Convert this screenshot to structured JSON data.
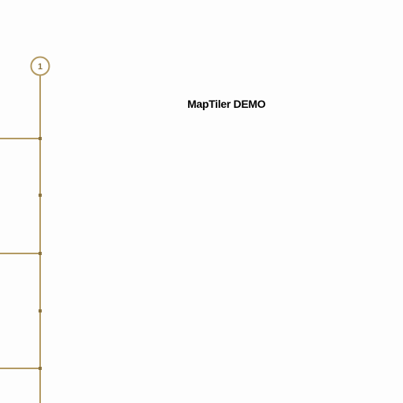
{
  "map": {
    "watermark": "MapTiler DEMO",
    "route_shield": {
      "label": "1",
      "icon": "route-shield-icon"
    },
    "colors": {
      "background": "#fdfdfd",
      "road": "#b39a63",
      "shield_fill": "#ffffff",
      "shield_text": "#8a7340",
      "watermark_text": "#000000",
      "watermark_halo": "#ffffff"
    }
  }
}
